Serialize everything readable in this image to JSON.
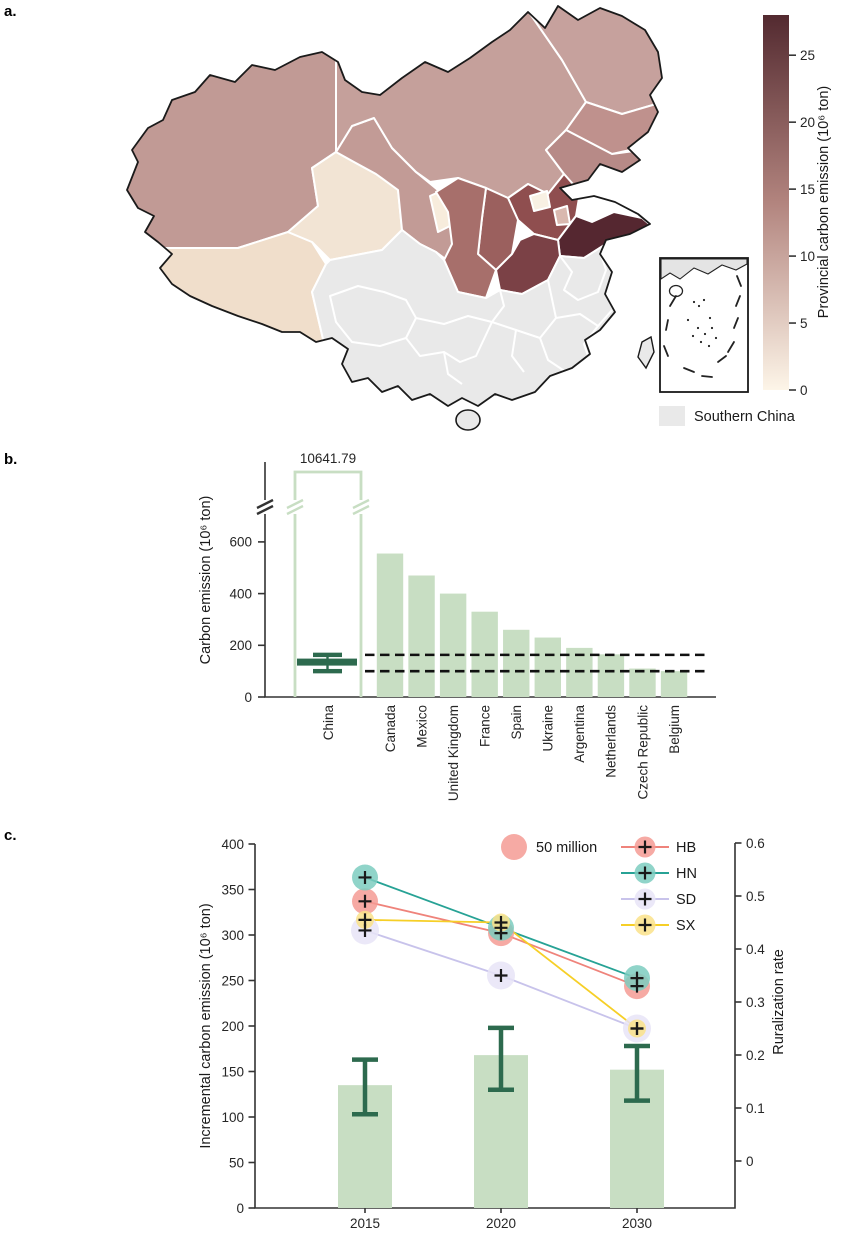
{
  "figure": {
    "panel_a_label": "a.",
    "panel_b_label": "b.",
    "panel_c_label": "c."
  },
  "map": {
    "colorbar": {
      "title": "Provincial carbon emission (10⁶ ton)",
      "ticks": [
        0,
        5,
        10,
        15,
        20,
        25
      ],
      "max_value": 28,
      "color_top": "#532a30",
      "color_mid": "#b2847e",
      "color_bottom": "#fdf5e8"
    },
    "legend": {
      "label": "Southern China",
      "swatch_color": "#e9e9e9"
    },
    "border_color": "#ffffff",
    "outline_color": "#1a1a1a",
    "provinces": {
      "xinjiang": "#c19a95",
      "tibet": "#f0decb",
      "qinghai": "#f2e4d4",
      "gansu": "#c29b96",
      "ningxia": "#f7ecdc",
      "inner-mongolia": "#c5a09b",
      "heilongjiang": "#c6a19d",
      "jilin": "#bf918d",
      "liaoning": "#b78a87",
      "hebei": "#8f4e4f",
      "beijing": "#f8f0e3",
      "tianjin": "#d9b8af",
      "shanxi": "#9b605e",
      "shaanxi": "#a76f6b",
      "shandong": "#552730",
      "henan": "#7b4146",
      "southern-china": "#e9e9e9",
      "hainan": "#e9e9e9",
      "taiwan": "#e9e9e9"
    }
  },
  "chart_data": [
    {
      "type": "bar",
      "ylabel": "Carbon emission (10⁶ ton)",
      "yticks": [
        0,
        200,
        400,
        600
      ],
      "categories": [
        "China",
        "Canada",
        "Mexico",
        "United Kingdom",
        "France",
        "Spain",
        "Ukraine",
        "Argentina",
        "Netherlands",
        "Czech Republic",
        "Belgium"
      ],
      "values": [
        10641.79,
        555,
        470,
        400,
        330,
        260,
        230,
        190,
        165,
        110,
        100
      ],
      "china": {
        "label": "10641.79",
        "broken_axis": true,
        "errorbar": {
          "mean": 135,
          "low": 100,
          "high": 163
        }
      },
      "dashed_lines": [
        163,
        100
      ],
      "bar_color": "#c8dec3",
      "error_color": "#2d6a4e",
      "ylim": [
        0,
        700
      ]
    },
    {
      "type": "bar+bubble-line",
      "ylabel_left": "Incremental carbon emission (10⁶ ton)",
      "ylabel_right": "Ruralization rate",
      "categories": [
        "2015",
        "2020",
        "2030"
      ],
      "yticks_left": [
        0,
        50,
        100,
        150,
        200,
        250,
        300,
        350,
        400
      ],
      "yticks_right": [
        0,
        0.1,
        0.2,
        0.3,
        0.4,
        0.5,
        0.6
      ],
      "ylim_left": [
        0,
        400
      ],
      "ylim_right": [
        0,
        0.6
      ],
      "bars": {
        "values": [
          135,
          168,
          152
        ],
        "err_low": [
          103,
          130,
          118
        ],
        "err_high": [
          163,
          198,
          178
        ],
        "color": "#c8dec3",
        "error_color": "#2d6a4e"
      },
      "bubble_legend": {
        "label": "50 million",
        "color": "#f59b94"
      },
      "series": [
        {
          "name": "HB",
          "fill": "#f59b94",
          "line": "#ef837b",
          "values": [
            0.49,
            0.43,
            0.33
          ],
          "radius": 13
        },
        {
          "name": "HN",
          "fill": "#7cccbf",
          "line": "#27a295",
          "values": [
            0.535,
            0.44,
            0.345
          ],
          "radius": 13
        },
        {
          "name": "SD",
          "fill": "#e7e4f7",
          "line": "#c8c3eb",
          "values": [
            0.435,
            0.35,
            0.25
          ],
          "radius": 14
        },
        {
          "name": "SX",
          "fill": "#fae289",
          "line": "#f6cf27",
          "values": [
            0.455,
            0.45,
            0.25
          ],
          "radius": 9
        }
      ]
    }
  ]
}
